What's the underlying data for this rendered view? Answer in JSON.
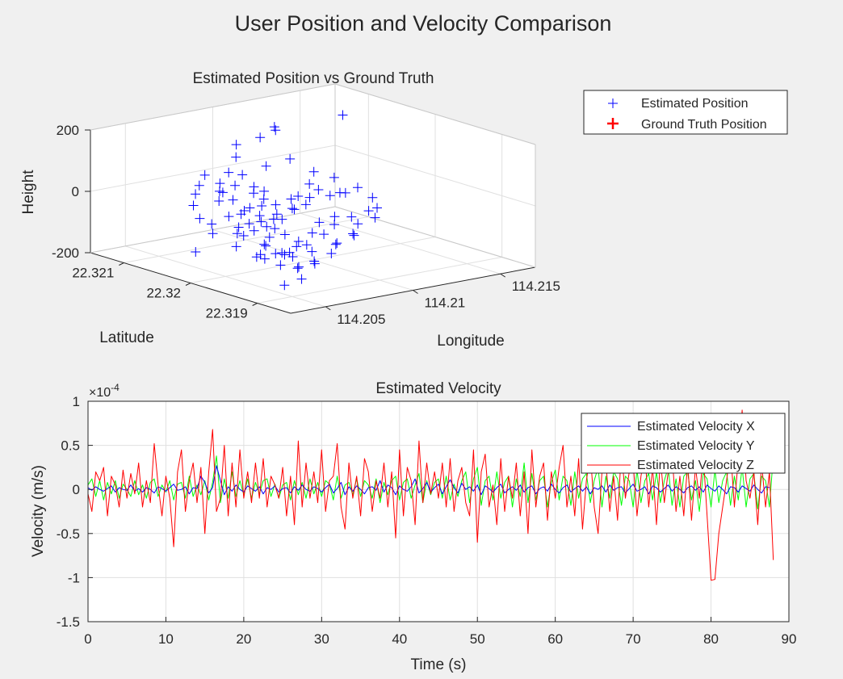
{
  "figure": {
    "title": "User Position and Velocity Comparison"
  },
  "colors": {
    "background": "#f0f0f0",
    "axes_bg": "#ffffff",
    "estimated_position": "#0000ff",
    "ground_truth": "#ff0000",
    "velocity_x": "#0000ff",
    "velocity_y": "#00ff00",
    "velocity_z": "#ff0000",
    "grid": "#e0e0e0",
    "text": "#262626"
  },
  "chart_data": [
    {
      "type": "scatter3d",
      "title": "Estimated Position vs Ground Truth",
      "xlabel": "Longitude",
      "ylabel": "Latitude",
      "zlabel": "Height",
      "xlim": [
        114.203,
        114.217
      ],
      "ylim": [
        22.3185,
        22.3215
      ],
      "zlim": [
        -200,
        200
      ],
      "xticks": [
        "114.205",
        "114.21",
        "114.215"
      ],
      "yticks": [
        "22.321",
        "22.32",
        "22.319"
      ],
      "zticks": [
        "200",
        "0",
        "-200"
      ],
      "grid": true,
      "legend": {
        "position": "top-right"
      },
      "series": [
        {
          "name": "Estimated Position",
          "marker": "plus",
          "color": "#0000ff"
        },
        {
          "name": "Ground Truth Position",
          "marker": "plus-bold",
          "color": "#ff0000"
        }
      ],
      "points": [
        [
          114.2081,
          22.3207,
          -30
        ],
        [
          114.2065,
          22.3206,
          -85
        ],
        [
          114.2072,
          22.3204,
          -110
        ],
        [
          114.2078,
          22.3205,
          -60
        ],
        [
          114.2085,
          22.3203,
          -95
        ],
        [
          114.209,
          22.3202,
          -70
        ],
        [
          114.2094,
          22.3204,
          -40
        ],
        [
          114.2099,
          22.3203,
          -20
        ],
        [
          114.2102,
          22.3201,
          -5
        ],
        [
          114.2106,
          22.3199,
          10
        ],
        [
          114.2111,
          22.3198,
          20
        ],
        [
          114.2104,
          22.3197,
          35
        ],
        [
          114.2098,
          22.32,
          50
        ],
        [
          114.2112,
          22.3203,
          55
        ],
        [
          114.2076,
          22.3201,
          -130
        ],
        [
          114.207,
          22.32,
          -150
        ],
        [
          114.208,
          22.3199,
          -155
        ],
        [
          114.2088,
          22.3199,
          -120
        ],
        [
          114.2092,
          22.3198,
          -90
        ],
        [
          114.2096,
          22.3198,
          -60
        ],
        [
          114.2101,
          22.3197,
          -40
        ],
        [
          114.2086,
          22.3208,
          5
        ],
        [
          114.2094,
          22.3209,
          25
        ],
        [
          114.21,
          22.3207,
          60
        ],
        [
          114.2106,
          22.3205,
          90
        ],
        [
          114.2113,
          22.3209,
          150
        ],
        [
          114.212,
          22.3211,
          140
        ],
        [
          114.2108,
          22.321,
          125
        ],
        [
          114.2089,
          22.3206,
          -10
        ],
        [
          114.2083,
          22.3205,
          -45
        ],
        [
          114.2075,
          22.3203,
          -75
        ],
        [
          114.2068,
          22.3202,
          -100
        ],
        [
          114.2073,
          22.32,
          -125
        ],
        [
          114.2079,
          22.3198,
          -140
        ],
        [
          114.2085,
          22.3197,
          -115
        ],
        [
          114.2091,
          22.3196,
          -80
        ],
        [
          114.2097,
          22.3196,
          -55
        ],
        [
          114.2103,
          22.3195,
          -30
        ],
        [
          114.2109,
          22.3194,
          -10
        ],
        [
          114.2082,
          22.3195,
          -160
        ],
        [
          114.2076,
          22.3196,
          -175
        ],
        [
          114.207,
          22.3197,
          -165
        ],
        [
          114.2064,
          22.3199,
          -145
        ],
        [
          114.206,
          22.3201,
          -120
        ],
        [
          114.2058,
          22.3204,
          -95
        ],
        [
          114.2062,
          22.3207,
          -70
        ],
        [
          114.2066,
          22.3209,
          -45
        ],
        [
          114.2071,
          22.321,
          -20
        ],
        [
          114.2077,
          22.3211,
          -5
        ],
        [
          114.2084,
          22.3212,
          15
        ],
        [
          114.214,
          22.3206,
          190
        ],
        [
          114.2052,
          22.3205,
          -155
        ],
        [
          114.2057,
          22.3193,
          -190
        ],
        [
          114.2063,
          22.3192,
          -170
        ],
        [
          114.2069,
          22.3194,
          -150
        ],
        [
          114.2074,
          22.3193,
          -130
        ],
        [
          114.208,
          22.3192,
          -105
        ],
        [
          114.2087,
          22.3193,
          -85
        ],
        [
          114.2093,
          22.3192,
          -60
        ],
        [
          114.2099,
          22.3193,
          -35
        ],
        [
          114.2105,
          22.3192,
          -15
        ],
        [
          114.211,
          22.3193,
          5
        ],
        [
          114.2115,
          22.3195,
          20
        ],
        [
          114.2118,
          22.3198,
          30
        ],
        [
          114.2116,
          22.3201,
          45
        ],
        [
          114.2078,
          22.3202,
          -65
        ],
        [
          114.2082,
          22.3201,
          -85
        ],
        [
          114.2087,
          22.3202,
          -50
        ],
        [
          114.2092,
          22.3201,
          -30
        ],
        [
          114.2096,
          22.32,
          -15
        ],
        [
          114.2084,
          22.32,
          -100
        ],
        [
          114.2079,
          22.3201,
          -110
        ],
        [
          114.2074,
          22.3202,
          -90
        ],
        [
          114.2069,
          22.3203,
          -80
        ],
        [
          114.2086,
          22.3204,
          -35
        ],
        [
          114.2091,
          22.3205,
          -25
        ],
        [
          114.2095,
          22.3206,
          -10
        ],
        [
          114.2081,
          22.3203,
          -55
        ],
        [
          114.2076,
          22.3204,
          -40
        ],
        [
          114.2071,
          22.3205,
          -60
        ],
        [
          114.2088,
          22.3197,
          -140
        ],
        [
          114.2094,
          22.3195,
          -110
        ],
        [
          114.21,
          22.3194,
          -75
        ],
        [
          114.2067,
          22.3196,
          -115
        ],
        [
          114.2061,
          22.3197,
          -135
        ],
        [
          114.2073,
          22.3207,
          -25
        ],
        [
          114.2079,
          22.3208,
          -10
        ],
        [
          114.209,
          22.321,
          30
        ],
        [
          114.2098,
          22.3211,
          65
        ],
        [
          114.2102,
          22.3212,
          95
        ],
        [
          114.2093,
          22.3207,
          0
        ],
        [
          114.2089,
          22.3203,
          -75
        ],
        [
          114.2083,
          22.3198,
          -125
        ],
        [
          114.2077,
          22.3197,
          -145
        ],
        [
          114.2071,
          22.3198,
          -135
        ],
        [
          114.2097,
          22.3202,
          -45
        ],
        [
          114.2103,
          22.3203,
          -15
        ],
        [
          114.2107,
          22.3201,
          15
        ],
        [
          114.2085,
          22.321,
          0
        ],
        [
          114.2081,
          22.3209,
          -15
        ]
      ]
    },
    {
      "type": "line",
      "title": "Estimated Velocity",
      "xlabel": "Time (s)",
      "ylabel": "Velocity (m/s)",
      "xlim": [
        0,
        90
      ],
      "ylim": [
        -1.5,
        1
      ],
      "y_exponent": "×10^-4",
      "exponent_base": "×10",
      "exponent_power": "-4",
      "xticks": [
        0,
        10,
        20,
        30,
        40,
        50,
        60,
        70,
        80,
        90
      ],
      "yticks": [
        -1.5,
        -1,
        -0.5,
        0,
        0.5,
        1
      ],
      "ytick_labels": [
        "-1.5",
        "-1",
        "-0.5",
        "0",
        "0.5",
        "1"
      ],
      "grid": true,
      "legend": {
        "position": "top-right"
      },
      "dt": 0.5,
      "series": [
        {
          "name": "Estimated Velocity X",
          "color": "#0000ff",
          "values": [
            0.02,
            -0.01,
            0.03,
            0.0,
            -0.02,
            0.01,
            0.04,
            -0.03,
            0.02,
            0.0,
            -0.01,
            0.05,
            -0.02,
            0.01,
            -0.03,
            0.02,
            0.0,
            -0.04,
            0.03,
            0.01,
            -0.02,
            0.02,
            0.06,
            -0.01,
            0.0,
            0.03,
            -0.05,
            0.02,
            0.01,
            0.15,
            0.08,
            -0.04,
            0.02,
            0.27,
            0.1,
            -0.06,
            0.03,
            -0.02,
            0.05,
            0.0,
            -0.03,
            0.04,
            0.01,
            -0.02,
            0.03,
            -0.05,
            0.02,
            0.0,
            0.04,
            -0.03,
            0.01,
            0.02,
            -0.04,
            0.03,
            -0.01,
            0.05,
            0.0,
            -0.02,
            0.03,
            0.01,
            -0.03,
            0.02,
            0.06,
            -0.04,
            0.01,
            0.08,
            -0.06,
            0.03,
            -0.02,
            0.04,
            0.0,
            -0.05,
            0.02,
            0.03,
            -0.01,
            0.1,
            -0.03,
            0.05,
            0.02,
            -0.06,
            0.04,
            0.0,
            -0.02,
            0.03,
            0.12,
            -0.04,
            0.01,
            0.08,
            -0.03,
            0.02,
            0.06,
            -0.05,
            0.03,
            0.11,
            0.02,
            -0.04,
            0.07,
            0.0,
            0.03,
            -0.02,
            0.05,
            -0.06,
            0.04,
            0.01,
            -0.03,
            0.02,
            0.06,
            -0.04,
            0.0,
            0.03,
            -0.01,
            0.05,
            -0.03,
            0.02,
            0.04,
            -0.05,
            0.01,
            0.03,
            -0.02,
            0.06,
            0.0,
            -0.04,
            0.02,
            0.05,
            -0.03,
            0.01,
            0.04,
            -0.02,
            0.03,
            -0.05,
            0.02,
            0.0,
            0.04,
            -0.03,
            0.05,
            -0.01,
            0.02,
            0.03,
            -0.04,
            0.01,
            0.06,
            -0.02,
            0.0,
            0.03,
            -0.05,
            0.04,
            0.02,
            -0.03,
            0.01,
            0.05,
            -0.02,
            0.03,
            0.0,
            -0.04,
            0.02,
            0.04,
            -0.01,
            0.03,
            -0.03,
            0.05,
            0.01,
            -0.02,
            0.04,
            0.0,
            -0.05,
            0.03,
            0.02,
            -0.03,
            0.04,
            0.01,
            -0.02,
            0.05,
            0.0,
            -0.04,
            0.03,
            0.02
          ]
        },
        {
          "name": "Estimated Velocity Y",
          "color": "#00ff00",
          "values": [
            0.05,
            0.12,
            -0.08,
            0.1,
            -0.12,
            0.08,
            -0.05,
            0.1,
            -0.1,
            0.06,
            0.0,
            -0.08,
            0.1,
            -0.06,
            0.05,
            -0.1,
            0.08,
            0.12,
            -0.08,
            0.05,
            -0.03,
            0.1,
            -0.12,
            0.06,
            0.08,
            -0.1,
            0.15,
            -0.08,
            0.05,
            -0.06,
            0.1,
            -0.12,
            0.08,
            0.38,
            -0.15,
            0.12,
            -0.1,
            0.2,
            -0.08,
            0.1,
            -0.06,
            0.12,
            -0.1,
            0.08,
            -0.05,
            0.1,
            0.12,
            -0.08,
            0.06,
            -0.1,
            0.05,
            0.08,
            -0.12,
            0.1,
            -0.06,
            0.08,
            -0.1,
            0.12,
            -0.05,
            0.08,
            -0.08,
            0.1,
            0.06,
            -0.12,
            0.15,
            -0.1,
            0.05,
            0.08,
            -0.06,
            0.12,
            -0.08,
            0.1,
            0.05,
            -0.1,
            0.12,
            -0.15,
            0.08,
            -0.06,
            0.1,
            0.15,
            -0.12,
            0.08,
            0.12,
            -0.1,
            0.05,
            0.18,
            -0.15,
            0.1,
            -0.06,
            0.08,
            0.12,
            -0.1,
            0.15,
            -0.12,
            0.06,
            -0.08,
            0.1,
            0.2,
            -0.15,
            0.12,
            0.25,
            -0.18,
            0.1,
            0.15,
            -0.12,
            0.2,
            -0.1,
            0.08,
            0.15,
            -0.2,
            0.12,
            -0.08,
            0.3,
            -0.15,
            0.18,
            -0.12,
            0.1,
            0.15,
            -0.2,
            0.08,
            0.22,
            -0.12,
            0.15,
            0.1,
            -0.18,
            0.2,
            -0.1,
            0.12,
            0.18,
            -0.15,
            0.1,
            0.25,
            -0.2,
            0.15,
            -0.1,
            0.2,
            0.12,
            -0.18,
            0.15,
            0.1,
            -0.2,
            0.22,
            -0.15,
            0.1,
            0.18,
            -0.12,
            0.2,
            -0.15,
            0.1,
            0.25,
            -0.18,
            0.12,
            -0.2,
            0.15,
            0.2,
            -0.12,
            0.1,
            -0.25,
            0.18,
            0.12,
            -0.2,
            0.22,
            -0.15,
            0.1,
            0.2,
            -0.18,
            0.15,
            -0.12,
            0.25,
            -0.2,
            0.12,
            0.18,
            -0.22,
            0.15,
            0.1,
            -0.2,
            0.38
          ]
        },
        {
          "name": "Estimated Velocity Z",
          "color": "#ff0000",
          "values": [
            -0.05,
            -0.25,
            0.2,
            0.1,
            0.25,
            -0.3,
            0.15,
            0.05,
            -0.2,
            0.22,
            -0.1,
            0.18,
            -0.05,
            0.3,
            -0.2,
            0.1,
            -0.15,
            0.52,
            0.05,
            -0.3,
            0.15,
            -0.1,
            -0.65,
            0.2,
            0.45,
            -0.25,
            0.1,
            0.3,
            -0.15,
            0.25,
            -0.5,
            0.2,
            0.68,
            -0.25,
            -0.1,
            0.5,
            -0.3,
            0.3,
            -0.2,
            0.45,
            -0.1,
            0.2,
            -0.15,
            0.3,
            -0.1,
            0.35,
            -0.2,
            0.15,
            0.05,
            -0.1,
            0.25,
            -0.3,
            0.15,
            -0.4,
            0.55,
            -0.2,
            0.3,
            -0.1,
            0.2,
            -0.15,
            0.45,
            -0.25,
            0.1,
            0.15,
            0.52,
            -0.2,
            -0.45,
            0.3,
            -0.1,
            0.15,
            -0.3,
            0.35,
            0.2,
            -0.25,
            0.1,
            -0.1,
            0.3,
            -0.2,
            0.2,
            -0.55,
            0.45,
            -0.3,
            0.25,
            0.1,
            -0.4,
            0.55,
            -0.15,
            0.3,
            -0.05,
            0.2,
            -0.1,
            0.3,
            -0.2,
            0.35,
            -0.25,
            0.1,
            0.25,
            -0.15,
            -0.3,
            0.45,
            -0.6,
            0.2,
            0.4,
            -0.2,
            0.05,
            -0.4,
            0.35,
            -0.25,
            0.15,
            -0.1,
            0.3,
            -0.3,
            0.2,
            -0.5,
            0.45,
            -0.2,
            0.15,
            0.3,
            -0.35,
            0.2,
            -0.1,
            0.25,
            0.5,
            -0.2,
            0.15,
            -0.3,
            0.35,
            -0.45,
            0.1,
            0.4,
            -0.2,
            -0.5,
            0.2,
            0.3,
            -0.25,
            0.15,
            -0.35,
            0.45,
            -0.1,
            0.2,
            0.3,
            -0.3,
            0.15,
            0.4,
            -0.2,
            0.25,
            -0.4,
            0.35,
            -0.15,
            0.2,
            0.4,
            -0.25,
            0.15,
            -0.3,
            0.3,
            -0.35,
            0.25,
            -0.1,
            0.4,
            -0.3,
            -1.03,
            -1.02,
            -0.5,
            -0.2,
            0.1,
            0.45,
            -0.2,
            0.35,
            0.9,
            0.1,
            -0.1,
            0.2,
            -0.4,
            0.3,
            -0.2,
            0.2,
            -0.8
          ]
        }
      ]
    }
  ]
}
